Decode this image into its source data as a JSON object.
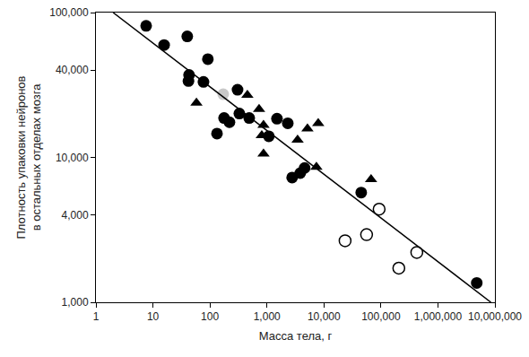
{
  "chart_data": {
    "type": "scatter",
    "x_label": "Масса тела, г",
    "y_label": "Плотность упаковки нейронов\nв остальных отделах мозга",
    "log": true,
    "grid": false,
    "xlim": [
      1,
      10000000
    ],
    "ylim": [
      1000,
      100000
    ],
    "xticks": [
      1,
      10,
      100,
      {
        "value": 1000,
        "label": "1,000"
      },
      {
        "value": 10000,
        "label": "10,000"
      },
      {
        "value": 100000,
        "label": "100,000"
      },
      {
        "value": 1000000,
        "label": "1,000,000"
      },
      {
        "value": 10000000,
        "label": "10,000,000"
      }
    ],
    "yticks": [
      {
        "value": 1000,
        "label": "1,000"
      },
      {
        "value": 4000,
        "label": "4,000"
      },
      {
        "value": 10000,
        "label": "10,000"
      },
      {
        "value": 40000,
        "label": "40,000"
      },
      {
        "value": 100000,
        "label": "100,000"
      }
    ],
    "series": [
      {
        "type": "scatter",
        "color": "#000000",
        "marker": "circle",
        "x": [
          7.6,
          15.7,
          40,
          43,
          42,
          92,
          77,
          305,
          328,
          177,
          220,
          133,
          489,
          1080,
          1500,
          2320,
          2770,
          3840,
          4580,
          45100,
          4800000
        ],
        "values": [
          81000,
          59700,
          68500,
          37100,
          33700,
          47700,
          33200,
          29300,
          20100,
          18700,
          17500,
          14600,
          18700,
          14000,
          18500,
          17200,
          7260,
          7790,
          8460,
          5720,
          1360
        ]
      },
      {
        "type": "scatter",
        "color": "#c8c8c8",
        "marker": "circle",
        "x": [
          171
        ],
        "values": [
          27300
        ]
      },
      {
        "type": "scatter",
        "color": "#000000",
        "marker": "triangle-up",
        "x": [
          58,
          454,
          728,
          871,
          812,
          871,
          3450,
          5140,
          7940,
          7380,
          67100
        ],
        "values": [
          23800,
          26900,
          21500,
          16700,
          14200,
          10600,
          13200,
          15800,
          17200,
          8580,
          7050
        ]
      },
      {
        "type": "scatter",
        "color": "#000000",
        "marker": "circle-open",
        "x": [
          23500,
          56000,
          93000,
          206000,
          426000
        ],
        "values": [
          2660,
          2930,
          4390,
          1720,
          2210
        ]
      },
      {
        "type": "line",
        "color": "#000000",
        "line_style": "solid",
        "x": [
          2,
          8500000
        ],
        "values": [
          100000,
          1000
        ]
      }
    ]
  }
}
